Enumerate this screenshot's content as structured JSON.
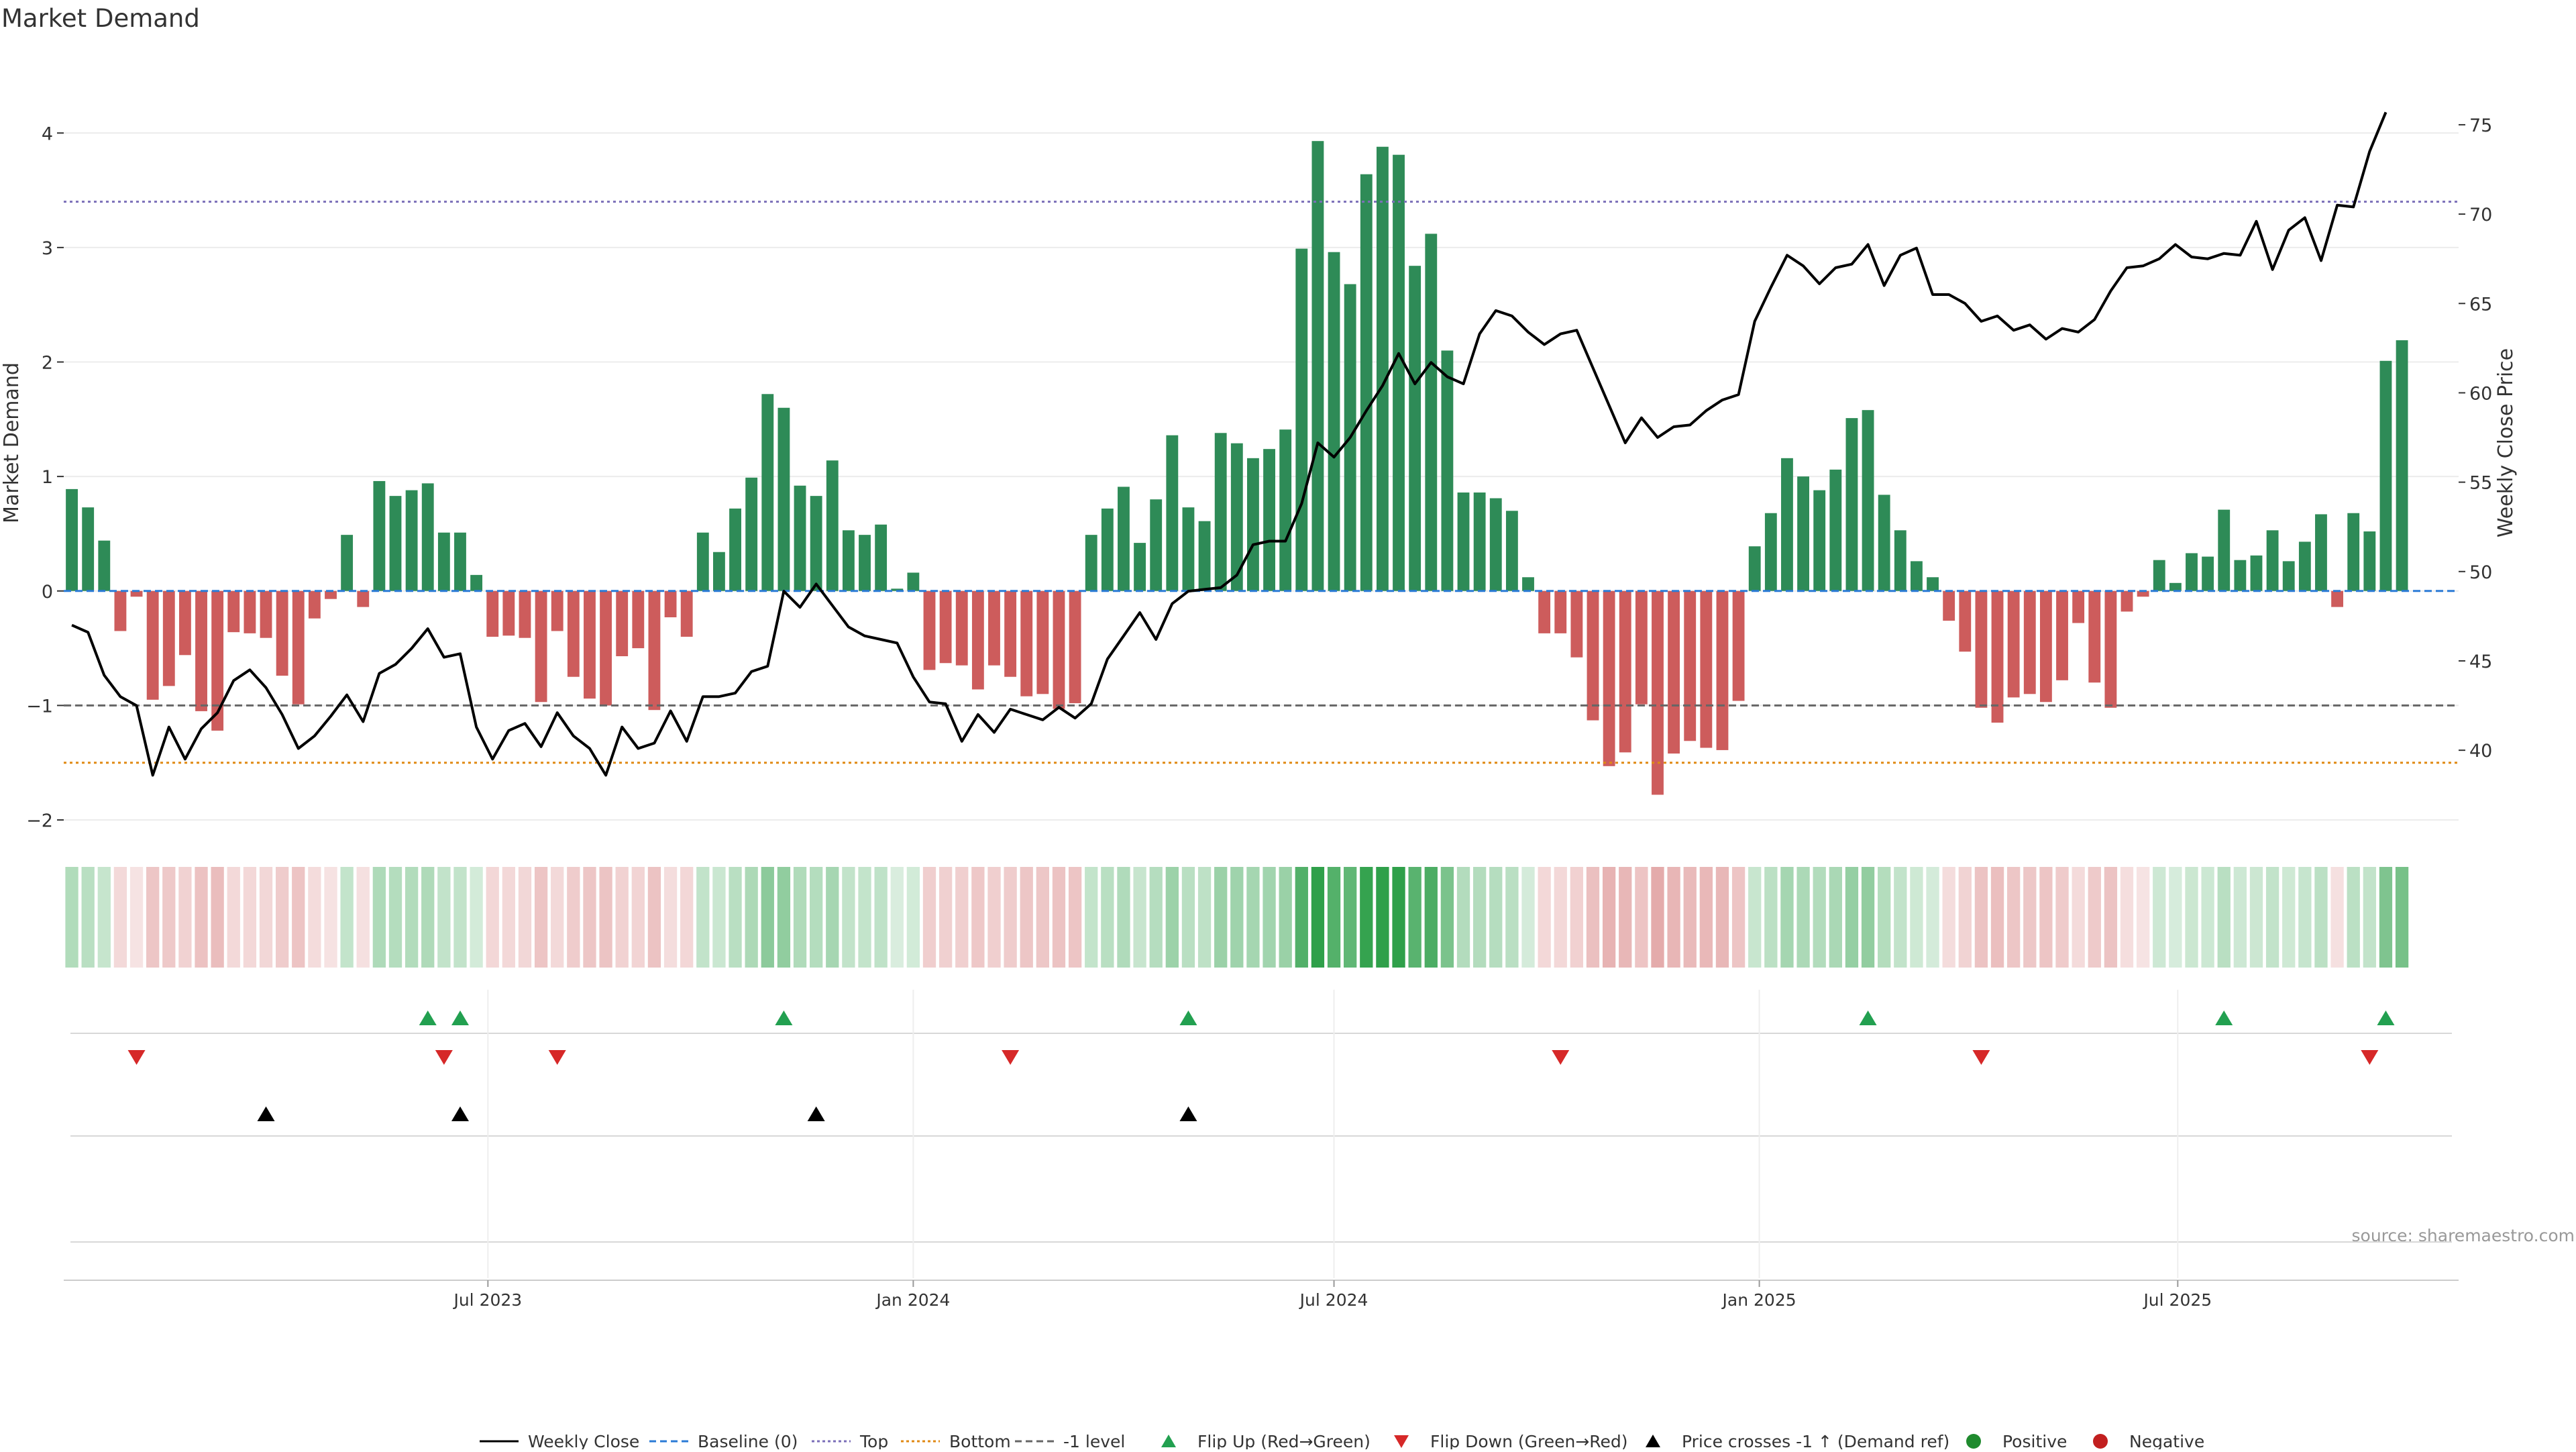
{
  "page": {
    "title": "Market Demand",
    "source": "source: sharemaestro.com"
  },
  "chart_data": {
    "type": "bar",
    "title": "Market Demand",
    "xlabel": "",
    "ylabel": "Market Demand",
    "y2label": "Weekly Close Price",
    "ylim": [
      -2,
      4.4
    ],
    "y2lim": [
      36.1,
      77.1
    ],
    "yticks": [
      -2,
      -1,
      0,
      1,
      2,
      3,
      4
    ],
    "y2ticks": [
      40,
      45,
      50,
      55,
      60,
      65,
      70,
      75
    ],
    "x_start": "2023-01-02",
    "x_end": "2025-10-27",
    "x_tick_labels": [
      {
        "date": "2023-07-01",
        "label": "Jul 2023"
      },
      {
        "date": "2024-01-01",
        "label": "Jan 2024"
      },
      {
        "date": "2024-07-01",
        "label": "Jul 2024"
      },
      {
        "date": "2025-01-01",
        "label": "Jan 2025"
      },
      {
        "date": "2025-07-01",
        "label": "Jul 2025"
      }
    ],
    "reference_lines": [
      {
        "name": "Top",
        "value": 3.4,
        "color": "#7b6fb8",
        "dash": "dotted"
      },
      {
        "name": "-1 level",
        "value": -1,
        "color": "#666666",
        "dash": "dashed"
      },
      {
        "name": "Bottom",
        "value": -1.5,
        "color": "#e08a14",
        "dash": "dotted"
      },
      {
        "name": "Baseline (0)",
        "value": 0,
        "color": "#2b7bd6",
        "dash": "dashed"
      }
    ],
    "colors": {
      "positive": "#2e8b57",
      "negative": "#cd5c5c",
      "close_line": "#000000",
      "flip_up": "#22a050",
      "flip_down": "#d62828",
      "cross": "#000000"
    },
    "weeks": [
      "2023-01-02",
      "2023-01-09",
      "2023-01-16",
      "2023-01-23",
      "2023-01-30",
      "2023-02-06",
      "2023-02-13",
      "2023-02-20",
      "2023-02-27",
      "2023-03-06",
      "2023-03-13",
      "2023-03-20",
      "2023-03-27",
      "2023-04-03",
      "2023-04-10",
      "2023-04-17",
      "2023-04-24",
      "2023-05-01",
      "2023-05-08",
      "2023-05-15",
      "2023-05-22",
      "2023-05-29",
      "2023-06-05",
      "2023-06-12",
      "2023-06-19",
      "2023-06-26",
      "2023-07-03",
      "2023-07-10",
      "2023-07-17",
      "2023-07-24",
      "2023-07-31",
      "2023-08-07",
      "2023-08-14",
      "2023-08-21",
      "2023-08-28",
      "2023-09-04",
      "2023-09-11",
      "2023-09-18",
      "2023-09-25",
      "2023-10-02",
      "2023-10-09",
      "2023-10-16",
      "2023-10-23",
      "2023-10-30",
      "2023-11-06",
      "2023-11-13",
      "2023-11-20",
      "2023-11-27",
      "2023-12-04",
      "2023-12-11",
      "2023-12-18",
      "2023-12-25",
      "2024-01-01",
      "2024-01-08",
      "2024-01-15",
      "2024-01-22",
      "2024-01-29",
      "2024-02-05",
      "2024-02-12",
      "2024-02-19",
      "2024-02-26",
      "2024-03-04",
      "2024-03-11",
      "2024-03-18",
      "2024-03-25",
      "2024-04-01",
      "2024-04-08",
      "2024-04-15",
      "2024-04-22",
      "2024-04-29",
      "2024-05-06",
      "2024-05-13",
      "2024-05-20",
      "2024-05-27",
      "2024-06-03",
      "2024-06-10",
      "2024-06-17",
      "2024-06-24",
      "2024-07-01",
      "2024-07-08",
      "2024-07-15",
      "2024-07-22",
      "2024-07-29",
      "2024-08-05",
      "2024-08-12",
      "2024-08-19",
      "2024-08-26",
      "2024-09-02",
      "2024-09-09",
      "2024-09-16",
      "2024-09-23",
      "2024-09-30",
      "2024-10-07",
      "2024-10-14",
      "2024-10-21",
      "2024-10-28",
      "2024-11-04",
      "2024-11-11",
      "2024-11-18",
      "2024-11-25",
      "2024-12-02",
      "2024-12-09",
      "2024-12-16",
      "2024-12-23",
      "2024-12-30",
      "2025-01-06",
      "2025-01-13",
      "2025-01-20",
      "2025-01-27",
      "2025-02-03",
      "2025-02-10",
      "2025-02-17",
      "2025-02-24",
      "2025-03-03",
      "2025-03-10",
      "2025-03-17",
      "2025-03-24",
      "2025-03-31",
      "2025-04-07",
      "2025-04-14",
      "2025-04-21",
      "2025-04-28",
      "2025-05-05",
      "2025-05-12",
      "2025-05-19",
      "2025-05-26",
      "2025-06-02",
      "2025-06-09",
      "2025-06-16",
      "2025-06-23",
      "2025-06-30",
      "2025-07-07",
      "2025-07-14",
      "2025-07-21",
      "2025-07-28",
      "2025-08-04",
      "2025-08-11",
      "2025-08-18",
      "2025-08-25",
      "2025-09-01",
      "2025-09-08",
      "2025-09-15",
      "2025-09-22",
      "2025-09-29",
      "2025-10-06",
      "2025-10-13",
      "2025-10-20",
      "2025-10-27"
    ],
    "series": [
      {
        "name": "Market Demand",
        "kind": "bar",
        "values": [
          0.89,
          0.73,
          0.44,
          -0.35,
          -0.05,
          -0.95,
          -0.83,
          -0.56,
          -1.05,
          -1.22,
          -0.36,
          -0.37,
          -0.41,
          -0.74,
          -0.99,
          -0.24,
          -0.07,
          0.49,
          -0.14,
          0.96,
          0.83,
          0.88,
          0.94,
          0.51,
          0.51,
          0.14,
          -0.4,
          -0.39,
          -0.41,
          -0.97,
          -0.35,
          -0.75,
          -0.94,
          -1.0,
          -0.57,
          -0.5,
          -1.04,
          -0.23,
          -0.4,
          0.51,
          0.34,
          0.72,
          0.99,
          1.72,
          1.6,
          0.92,
          0.83,
          1.14,
          0.53,
          0.49,
          0.58,
          0.02,
          0.16,
          -0.69,
          -0.63,
          -0.65,
          -0.86,
          -0.65,
          -0.75,
          -0.92,
          -0.9,
          -1.03,
          -0.98,
          0.49,
          0.72,
          0.91,
          0.42,
          0.8,
          1.36,
          0.73,
          0.61,
          1.38,
          1.29,
          1.16,
          1.24,
          1.41,
          2.99,
          3.93,
          2.96,
          2.68,
          3.64,
          3.88,
          3.81,
          2.84,
          3.12,
          2.1,
          0.86,
          0.86,
          0.81,
          0.7,
          0.12,
          -0.37,
          -0.37,
          -0.58,
          -1.13,
          -1.53,
          -1.41,
          -0.99,
          -1.78,
          -1.42,
          -1.31,
          -1.37,
          -1.39,
          -0.96,
          0.39,
          0.68,
          1.16,
          1.0,
          0.88,
          1.06,
          1.51,
          1.58,
          0.84,
          0.53,
          0.26,
          0.12,
          -0.26,
          -0.53,
          -1.02,
          -1.15,
          -0.93,
          -0.9,
          -0.97,
          -0.78,
          -0.28,
          -0.8,
          -1.02,
          -0.18,
          -0.05,
          0.27,
          0.07,
          0.33,
          0.3,
          0.71,
          0.27,
          0.31,
          0.53,
          0.26,
          0.43,
          0.67,
          -0.14,
          0.68,
          0.52,
          2.01,
          2.19
        ]
      },
      {
        "name": "Weekly Close",
        "kind": "line",
        "axis": "right",
        "values": [
          47.0,
          46.6,
          44.2,
          43.0,
          42.5,
          38.6,
          41.3,
          39.5,
          41.2,
          42.1,
          43.9,
          44.5,
          43.5,
          42.0,
          40.1,
          40.8,
          41.9,
          43.1,
          41.6,
          44.3,
          44.8,
          45.7,
          46.8,
          45.2,
          45.4,
          41.3,
          39.5,
          41.1,
          41.5,
          40.2,
          42.1,
          40.8,
          40.1,
          38.6,
          41.3,
          40.1,
          40.4,
          42.2,
          40.5,
          43.0,
          43.0,
          43.2,
          44.4,
          44.7,
          48.9,
          48.0,
          49.3,
          48.1,
          46.9,
          46.4,
          46.2,
          46.0,
          44.1,
          42.7,
          42.6,
          40.5,
          42.0,
          41.0,
          42.3,
          42.0,
          41.7,
          42.4,
          41.8,
          42.6,
          45.1,
          46.4,
          47.7,
          46.2,
          48.2,
          48.9,
          49.0,
          49.1,
          49.8,
          51.5,
          51.7,
          51.7,
          53.8,
          57.2,
          56.4,
          57.5,
          59.0,
          60.4,
          62.2,
          60.5,
          61.7,
          60.9,
          60.5,
          63.3,
          64.6,
          64.3,
          63.4,
          62.7,
          63.3,
          63.5,
          61.4,
          59.3,
          57.2,
          58.6,
          57.5,
          58.1,
          58.2,
          59.0,
          59.6,
          59.9,
          64.0,
          65.9,
          67.7,
          67.1,
          66.1,
          67.0,
          67.2,
          68.3,
          66.0,
          67.7,
          68.1,
          65.5,
          65.5,
          65.0,
          64.0,
          64.3,
          63.5,
          63.8,
          63.0,
          63.6,
          63.4,
          64.1,
          65.7,
          67.0,
          67.1,
          67.5,
          68.3,
          67.6,
          67.5,
          67.8,
          67.7,
          69.6,
          66.9,
          69.1,
          69.8,
          67.4,
          70.5,
          70.4,
          73.5,
          75.7
        ]
      }
    ],
    "flip_up_dates": [
      "2023-06-05",
      "2023-06-19",
      "2023-11-06",
      "2024-04-29",
      "2025-02-17",
      "2025-07-21",
      "2025-09-29"
    ],
    "flip_down_dates": [
      "2023-01-30",
      "2023-06-12",
      "2023-07-31",
      "2024-02-12",
      "2024-10-07",
      "2025-04-07",
      "2025-09-22"
    ],
    "cross_up_dates": [
      "2023-03-27",
      "2023-06-19",
      "2023-11-20",
      "2024-04-29"
    ],
    "legend_position": "bottom",
    "legend": [
      {
        "label": "Weekly Close",
        "type": "line-solid",
        "color": "#000000"
      },
      {
        "label": "Baseline (0)",
        "type": "line-dashed",
        "color": "#2b7bd6"
      },
      {
        "label": "Top",
        "type": "line-dotted",
        "color": "#7b6fb8"
      },
      {
        "label": "Bottom",
        "type": "line-dotted",
        "color": "#e08a14"
      },
      {
        "label": "-1 level",
        "type": "line-dashed",
        "color": "#666666"
      },
      {
        "label": "Flip Up (Red→Green)",
        "type": "triangle-up",
        "color": "#22a050"
      },
      {
        "label": "Flip Down (Green→Red)",
        "type": "triangle-down",
        "color": "#d62828"
      },
      {
        "label": "Price crosses -1 ↑ (Demand ref)",
        "type": "triangle-up",
        "color": "#000000"
      },
      {
        "label": "Positive",
        "type": "circle",
        "color": "#1f8a2e"
      },
      {
        "label": "Negative",
        "type": "circle",
        "color": "#c21f1f"
      }
    ]
  }
}
